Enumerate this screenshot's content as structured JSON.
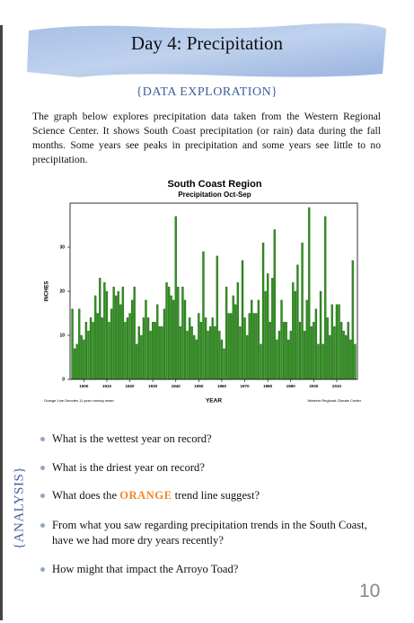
{
  "header": {
    "title": "Day 4: Precipitation"
  },
  "section": "{DATA EXPLORATION}",
  "intro": "The graph below explores precipitation data taken from the Western Regional Science Center. It shows South Coast precipitation (or rain) data during the fall months. Some years see peaks in precipitation and some years see little to no precipitation.",
  "chart_data": {
    "type": "bar",
    "title": "South Coast Region",
    "subtitle": "Precipitation  Oct-Sep",
    "y_label": "INCHES",
    "x_label": "YEAR",
    "note": "Orange Line Denotes 11 year running mean",
    "source": "Western Regional Climate Center",
    "color": "#2f8f1f",
    "x": [
      1895,
      1896,
      1897,
      1898,
      1899,
      1900,
      1901,
      1902,
      1903,
      1904,
      1905,
      1906,
      1907,
      1908,
      1909,
      1910,
      1911,
      1912,
      1913,
      1914,
      1915,
      1916,
      1917,
      1918,
      1919,
      1920,
      1921,
      1922,
      1923,
      1924,
      1925,
      1926,
      1927,
      1928,
      1929,
      1930,
      1931,
      1932,
      1933,
      1934,
      1935,
      1936,
      1937,
      1938,
      1939,
      1940,
      1941,
      1942,
      1943,
      1944,
      1945,
      1946,
      1947,
      1948,
      1949,
      1950,
      1951,
      1952,
      1953,
      1954,
      1955,
      1956,
      1957,
      1958,
      1959,
      1960,
      1961,
      1962,
      1963,
      1964,
      1965,
      1966,
      1967,
      1968,
      1969,
      1970,
      1971,
      1972,
      1973,
      1974,
      1975,
      1976,
      1977,
      1978,
      1979,
      1980,
      1981,
      1982,
      1983,
      1984,
      1985,
      1986,
      1987,
      1988,
      1989,
      1990,
      1991,
      1992,
      1993,
      1994,
      1995,
      1996,
      1997,
      1998,
      1999,
      2000,
      2001,
      2002,
      2003,
      2004,
      2005,
      2006,
      2007,
      2008,
      2009,
      2010,
      2011,
      2012,
      2013,
      2014,
      2015,
      2016,
      2017,
      2018
    ],
    "values": [
      16,
      7,
      8,
      16,
      10,
      9,
      13,
      11,
      14,
      13,
      19,
      15,
      23,
      14,
      22,
      20,
      13,
      16,
      21,
      19,
      20,
      17,
      21,
      13,
      14,
      15,
      18,
      21,
      8,
      12,
      10,
      14,
      18,
      14,
      11,
      13,
      13,
      17,
      12,
      12,
      16,
      22,
      21,
      19,
      18,
      37,
      21,
      12,
      21,
      18,
      11,
      14,
      12,
      10,
      9,
      15,
      13,
      29,
      14,
      11,
      12,
      14,
      12,
      28,
      11,
      9,
      7,
      21,
      15,
      15,
      19,
      17,
      22,
      12,
      27,
      14,
      10,
      15,
      18,
      15,
      15,
      18,
      8,
      31,
      20,
      24,
      13,
      23,
      34,
      9,
      11,
      18,
      13,
      13,
      9,
      11,
      22,
      20,
      26,
      13,
      31,
      11,
      18,
      39,
      12,
      13,
      16,
      8,
      20,
      8,
      37,
      14,
      10,
      17,
      12,
      17,
      17,
      13,
      11,
      10,
      13,
      9,
      27,
      8
    ],
    "xlim": [
      1894,
      2019
    ],
    "ylim": [
      0,
      40
    ],
    "xticks": [
      1900,
      1910,
      1920,
      1930,
      1940,
      1950,
      1960,
      1970,
      1980,
      1990,
      2000,
      2010
    ],
    "yticks": [
      0,
      10,
      20,
      30
    ]
  },
  "sidebar": "{ANALYSIS}",
  "questions": [
    "What is the wettest year on record?",
    "What is the driest year on record?",
    {
      "before": "What does the ",
      "highlight": "ORANGE",
      "after": " trend line suggest?"
    },
    "From what you saw regarding precipitation trends in the South Coast, have we had more dry years recently?",
    "How might that impact the Arroyo Toad?"
  ],
  "page_number": 10
}
